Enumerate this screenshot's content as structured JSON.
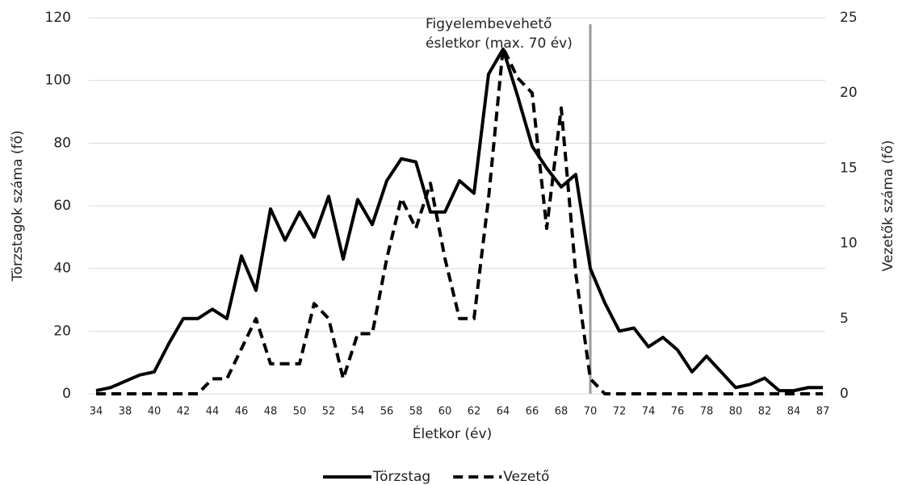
{
  "chart_data": {
    "type": "line",
    "xlabel": "Életkor (év)",
    "ylabel": "Törzstagok száma (fő)",
    "y2label": "Vezetők száma (fő)",
    "categories": [
      "34",
      null,
      "38",
      null,
      "40",
      null,
      "42",
      null,
      "44",
      null,
      "46",
      null,
      "48",
      null,
      "50",
      null,
      "52",
      null,
      "54",
      null,
      "56",
      null,
      "58",
      null,
      "60",
      null,
      "62",
      null,
      "64",
      null,
      "66",
      null,
      "68",
      null,
      "70",
      null,
      "72",
      null,
      "74",
      null,
      "76",
      null,
      "78",
      null,
      "80",
      null,
      "82",
      null,
      "84",
      null,
      "87"
    ],
    "series": [
      {
        "name": "Törzstag",
        "color": "#000000",
        "dash": false,
        "values": [
          1,
          2,
          4,
          6,
          7,
          16,
          24,
          24,
          27,
          24,
          44,
          33,
          59,
          49,
          58,
          50,
          63,
          43,
          62,
          54,
          68,
          75,
          74,
          58,
          58,
          68,
          64,
          102,
          110,
          95,
          79,
          72,
          66,
          70,
          40,
          29,
          20,
          21,
          15,
          18,
          14,
          7,
          12,
          7,
          2,
          3,
          5,
          1,
          1,
          2,
          2
        ]
      },
      {
        "name": "Vezető",
        "color": "#000000",
        "dash": true,
        "axis": "y2",
        "values": [
          0,
          0,
          0,
          0,
          0,
          0,
          0,
          0,
          1,
          1,
          3,
          5,
          2,
          2,
          2,
          6,
          5,
          1,
          4,
          4,
          9,
          13,
          11,
          14,
          9,
          5,
          5,
          13,
          23,
          21,
          20,
          11,
          19,
          8,
          1,
          0,
          0,
          0,
          0,
          0,
          0,
          0,
          0,
          0,
          0,
          0,
          0,
          0,
          0,
          0,
          0
        ]
      }
    ],
    "ylim": [
      0,
      120
    ],
    "yticks": [
      0,
      20,
      40,
      60,
      80,
      100,
      120
    ],
    "y2lim": [
      0,
      25
    ],
    "y2ticks": [
      0,
      5,
      10,
      15,
      20,
      25
    ],
    "grid": true,
    "legend": "bottom",
    "reference_line": {
      "x": "70",
      "color": "#999999",
      "label": "Figyelembevehető\nésletkor (max. 70 év)"
    }
  }
}
